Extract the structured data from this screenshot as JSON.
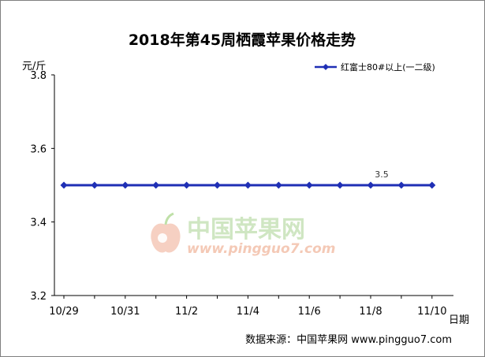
{
  "chart_data": {
    "type": "line",
    "title": "2018年第45周栖霞苹果价格走势",
    "ylabel": "元/斤",
    "xlabel": "日期",
    "ylim": [
      3.2,
      3.8
    ],
    "y_ticks": [
      "3.2",
      "3.4",
      "3.6",
      "3.8"
    ],
    "y_tick_values": [
      3.2,
      3.4,
      3.6,
      3.8
    ],
    "x": [
      "10/29",
      "10/30",
      "10/31",
      "11/1",
      "11/2",
      "11/3",
      "11/4",
      "11/5",
      "11/6",
      "11/7",
      "11/8",
      "11/9",
      "11/10"
    ],
    "x_tick_labels": [
      "10/29",
      "10/31",
      "11/2",
      "11/4",
      "11/6",
      "11/8",
      "11/10"
    ],
    "series": [
      {
        "name": "红富士80#以上(一二级)",
        "color": "#1f2fb5",
        "values": [
          3.5,
          3.5,
          3.5,
          3.5,
          3.5,
          3.5,
          3.5,
          3.5,
          3.5,
          3.5,
          3.5,
          3.5,
          3.5
        ]
      }
    ],
    "data_label": {
      "index": 10,
      "text": "3.5"
    },
    "legend_position": "top-right",
    "grid": false
  },
  "watermark": {
    "name": "中国苹果网",
    "url": "www.pingguo7.com"
  },
  "source": "数据来源：中国苹果网  www.pingguo7.com"
}
